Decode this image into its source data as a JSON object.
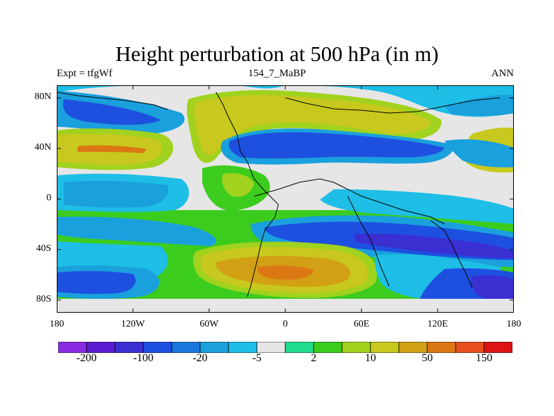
{
  "title": "Height perturbation at 500 hPa (in m)",
  "subtitle_left": "Expt = tfgWf",
  "subtitle_center": "154_7_MaBP",
  "subtitle_right": "ANN",
  "map": {
    "projection": "cylindrical equidistant",
    "lon_range": [
      -180,
      180
    ],
    "lat_range": [
      -90,
      90
    ],
    "field": "500 hPa height perturbation (m)",
    "y_ticks": [
      {
        "label": "80N",
        "lat": 80
      },
      {
        "label": "40N",
        "lat": 40
      },
      {
        "label": "0",
        "lat": 0
      },
      {
        "label": "40S",
        "lat": -40
      },
      {
        "label": "80S",
        "lat": -80
      }
    ],
    "x_ticks": [
      {
        "label": "180",
        "lon": -180
      },
      {
        "label": "120W",
        "lon": -120
      },
      {
        "label": "60W",
        "lon": -60
      },
      {
        "label": "0",
        "lon": 0
      },
      {
        "label": "60E",
        "lon": 60
      },
      {
        "label": "120E",
        "lon": 120
      },
      {
        "label": "180",
        "lon": 180
      }
    ]
  },
  "colorbar": {
    "colors": [
      "#8a2be2",
      "#5a1ed0",
      "#3a2fd0",
      "#1e50e0",
      "#1a78dc",
      "#1aa0dc",
      "#1ebee6",
      "#e6e6e6",
      "#1edc8c",
      "#3ccc1e",
      "#a0d21e",
      "#c8c81e",
      "#d2a014",
      "#dc7814",
      "#e6501e",
      "#dc1414"
    ],
    "labels": [
      {
        "text": "-200",
        "boundary": 1
      },
      {
        "text": "-100",
        "boundary": 3
      },
      {
        "text": "-20",
        "boundary": 5
      },
      {
        "text": "-5",
        "boundary": 7
      },
      {
        "text": "2",
        "boundary": 9
      },
      {
        "text": "10",
        "boundary": 11
      },
      {
        "text": "50",
        "boundary": 13
      },
      {
        "text": "150",
        "boundary": 15
      }
    ]
  }
}
